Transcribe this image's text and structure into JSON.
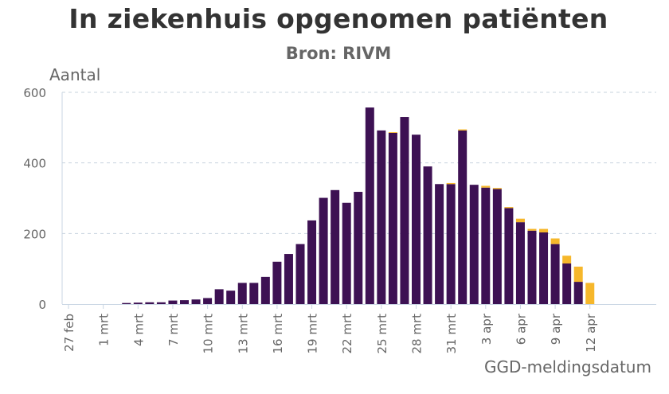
{
  "chart_data": {
    "type": "bar",
    "stacked": true,
    "title": "In ziekenhuis opgenomen patiënten",
    "subtitle": "Bron: RIVM",
    "ylabel": "Aantal",
    "xlabel": "GGD-meldingsdatum",
    "ylim": [
      0,
      600
    ],
    "yticks": [
      0,
      200,
      400,
      600
    ],
    "grid": "horizontal dashed",
    "categories": [
      "27 feb",
      "28 feb",
      "29 feb",
      "1 mrt",
      "2 mrt",
      "3 mrt",
      "4 mrt",
      "5 mrt",
      "6 mrt",
      "7 mrt",
      "8 mrt",
      "9 mrt",
      "10 mrt",
      "11 mrt",
      "12 mrt",
      "13 mrt",
      "14 mrt",
      "15 mrt",
      "16 mrt",
      "17 mrt",
      "18 mrt",
      "19 mrt",
      "20 mrt",
      "21 mrt",
      "22 mrt",
      "23 mrt",
      "24 mrt",
      "25 mrt",
      "26 mrt",
      "27 mrt",
      "28 mrt",
      "29 mrt",
      "30 mrt",
      "31 mrt",
      "1 apr",
      "2 apr",
      "3 apr",
      "4 apr",
      "5 apr",
      "6 apr",
      "7 apr",
      "8 apr",
      "9 apr",
      "10 apr",
      "11 apr",
      "12 apr"
    ],
    "xtick_labels": [
      "27 feb",
      "1 mrt",
      "4 mrt",
      "7 mrt",
      "10 mrt",
      "13 mrt",
      "16 mrt",
      "19 mrt",
      "22 mrt",
      "25 mrt",
      "28 mrt",
      "31 mrt",
      "3 apr",
      "6 apr",
      "9 apr",
      "12 apr"
    ],
    "series": [
      {
        "color": "#3d1153",
        "values": [
          0,
          0,
          0,
          0,
          0,
          3,
          4,
          5,
          5,
          10,
          11,
          13,
          17,
          42,
          38,
          60,
          60,
          77,
          120,
          142,
          170,
          237,
          301,
          323,
          287,
          318,
          557,
          492,
          485,
          530,
          480,
          390,
          340,
          340,
          492,
          338,
          330,
          326,
          272,
          232,
          208,
          203,
          170,
          115,
          63,
          0
        ]
      },
      {
        "color": "#f6b72b",
        "values": [
          0,
          0,
          0,
          0,
          0,
          0,
          0,
          0,
          0,
          0,
          0,
          0,
          0,
          0,
          0,
          0,
          0,
          0,
          0,
          0,
          0,
          0,
          0,
          0,
          0,
          0,
          0,
          0,
          2,
          0,
          0,
          0,
          0,
          3,
          3,
          0,
          5,
          3,
          3,
          10,
          5,
          10,
          16,
          22,
          43,
          60
        ]
      }
    ]
  }
}
